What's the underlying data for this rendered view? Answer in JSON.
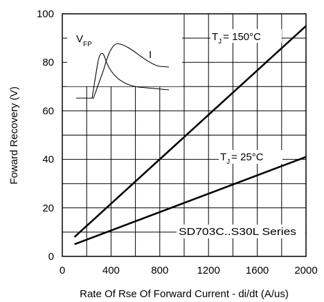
{
  "chart_data": {
    "type": "line",
    "xlabel": "Rate Of Rse Of Forward Current - di/dt (A/us)",
    "ylabel": "Foward Recovery (V)",
    "xlim": [
      0,
      2000
    ],
    "ylim": [
      0,
      100
    ],
    "xticks": [
      "0",
      "400",
      "800",
      "1200",
      "1600",
      "2000"
    ],
    "yticks": [
      "0",
      "20",
      "40",
      "60",
      "80",
      "100"
    ],
    "grid": true,
    "series": [
      {
        "name": "TJ = 150°C",
        "x": [
          100,
          2000
        ],
        "y": [
          8,
          95
        ]
      },
      {
        "name": "TJ = 25°C",
        "x": [
          100,
          2000
        ],
        "y": [
          5,
          41
        ]
      }
    ],
    "annotations": {
      "t150": {
        "main": "T",
        "sub": "J",
        "rest": "= 150°C"
      },
      "t25": {
        "main": "T",
        "sub": "J",
        "rest": "= 25°C"
      },
      "series_label": "SD703C..S30L Series"
    },
    "inset": {
      "vfp_main": "V",
      "vfp_sub": "FP",
      "current_label": "I"
    }
  }
}
